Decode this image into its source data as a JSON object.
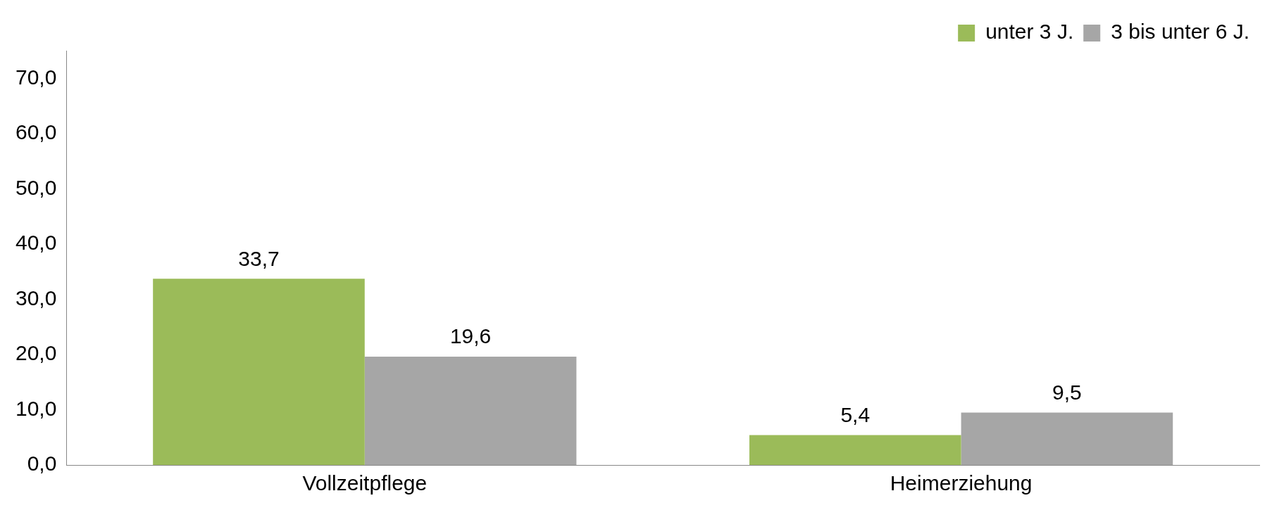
{
  "chart_data": {
    "type": "bar",
    "categories": [
      "Vollzeitpflege",
      "Heimerziehung"
    ],
    "series": [
      {
        "name": "unter 3 J.",
        "color": "#9bbb59",
        "values": [
          33.7,
          5.4
        ],
        "value_labels": [
          "33,7",
          "5,4"
        ]
      },
      {
        "name": "3 bis unter 6 J.",
        "color": "#a6a6a6",
        "values": [
          19.6,
          9.5
        ],
        "value_labels": [
          "19,6",
          "9,5"
        ]
      }
    ],
    "ylim": [
      0,
      75
    ],
    "yticks": [
      {
        "value": 0,
        "label": "0,0"
      },
      {
        "value": 10,
        "label": "10,0"
      },
      {
        "value": 20,
        "label": "20,0"
      },
      {
        "value": 30,
        "label": "30,0"
      },
      {
        "value": 40,
        "label": "40,0"
      },
      {
        "value": 50,
        "label": "50,0"
      },
      {
        "value": 60,
        "label": "60,0"
      },
      {
        "value": 70,
        "label": "70,0"
      }
    ],
    "grid": false,
    "legend": "top right"
  }
}
